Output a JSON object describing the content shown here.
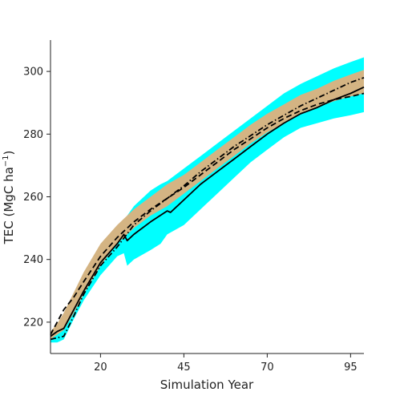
{
  "chart_data": {
    "type": "line",
    "xlabel": "Simulation Year",
    "ylabel": "TEC (MgC ha",
    "ylabel_superscript": "−1",
    "ylabel_close": ")",
    "xlim": [
      5,
      99
    ],
    "ylim": [
      210,
      310
    ],
    "xticks": [
      20,
      45,
      70,
      95
    ],
    "yticks": [
      220,
      240,
      260,
      280,
      300
    ],
    "grid": false,
    "bands": [
      {
        "color": "#00ffff",
        "x": [
          5,
          7,
          9,
          12,
          15,
          20,
          25,
          27,
          28,
          30,
          35,
          38,
          40,
          45,
          50,
          55,
          60,
          65,
          70,
          75,
          80,
          85,
          90,
          95,
          99
        ],
        "lower": [
          213.5,
          213.5,
          214.5,
          221,
          227,
          235,
          241,
          242,
          238,
          240,
          243,
          245,
          248,
          251,
          256,
          261,
          266,
          271,
          275,
          279,
          282,
          283.5,
          285,
          286,
          287
        ],
        "upper": [
          216,
          217.5,
          219,
          226,
          232,
          241,
          249,
          252,
          254,
          257,
          262,
          264,
          265,
          269,
          273,
          277,
          281,
          285,
          289,
          293,
          296,
          298.5,
          301,
          303,
          304.5
        ]
      },
      {
        "color": "#d4b483",
        "x": [
          5,
          7,
          9,
          12,
          15,
          20,
          25,
          27,
          30,
          35,
          40,
          45,
          50,
          55,
          60,
          65,
          70,
          75,
          80,
          85,
          90,
          95,
          99
        ],
        "lower": [
          214.5,
          216,
          217.5,
          223,
          229,
          238,
          245,
          247,
          250,
          254,
          257,
          261,
          265,
          269,
          273,
          277,
          280.5,
          283.5,
          286.5,
          288.5,
          290.5,
          292,
          293
        ],
        "upper": [
          217,
          219.5,
          223,
          229.5,
          236,
          245,
          251,
          253,
          256,
          260,
          264,
          267,
          271,
          275,
          279,
          283,
          286.5,
          289.5,
          292.5,
          294.5,
          297,
          299,
          300.5
        ]
      }
    ],
    "series": [
      {
        "style": "solid",
        "color": "#000000",
        "x": [
          5,
          7,
          9,
          12,
          15,
          20,
          25,
          27,
          28,
          30,
          35,
          40,
          41,
          45,
          50,
          55,
          60,
          65,
          70,
          75,
          80,
          85,
          90,
          95,
          99
        ],
        "y": [
          215.5,
          217,
          218,
          224,
          230,
          239,
          245,
          248,
          246,
          248,
          252,
          255.5,
          255,
          259,
          264,
          268,
          272,
          276,
          280,
          283.5,
          286.5,
          288.5,
          291,
          293,
          295
        ]
      },
      {
        "style": "dashed",
        "color": "#000000",
        "x": [
          5,
          7,
          9,
          12,
          15,
          20,
          25,
          30,
          35,
          40,
          45,
          50,
          55,
          60,
          65,
          70,
          75,
          80,
          85,
          90,
          95,
          99
        ],
        "y": [
          216,
          220,
          224,
          228,
          233,
          241,
          247,
          252,
          256,
          259.5,
          263,
          267,
          271,
          275,
          278.5,
          282,
          285,
          287.5,
          289.5,
          291,
          292,
          293
        ]
      },
      {
        "style": "dashdot",
        "color": "#000000",
        "x": [
          5,
          7,
          9,
          12,
          15,
          20,
          25,
          30,
          35,
          40,
          45,
          50,
          55,
          60,
          65,
          70,
          75,
          80,
          85,
          90,
          95,
          99
        ],
        "y": [
          214.5,
          215,
          215.5,
          222,
          229,
          238,
          244,
          251,
          255.5,
          259.5,
          263.5,
          268,
          272,
          276,
          279.5,
          283,
          286,
          289,
          291.5,
          294,
          296.5,
          298
        ]
      }
    ]
  }
}
